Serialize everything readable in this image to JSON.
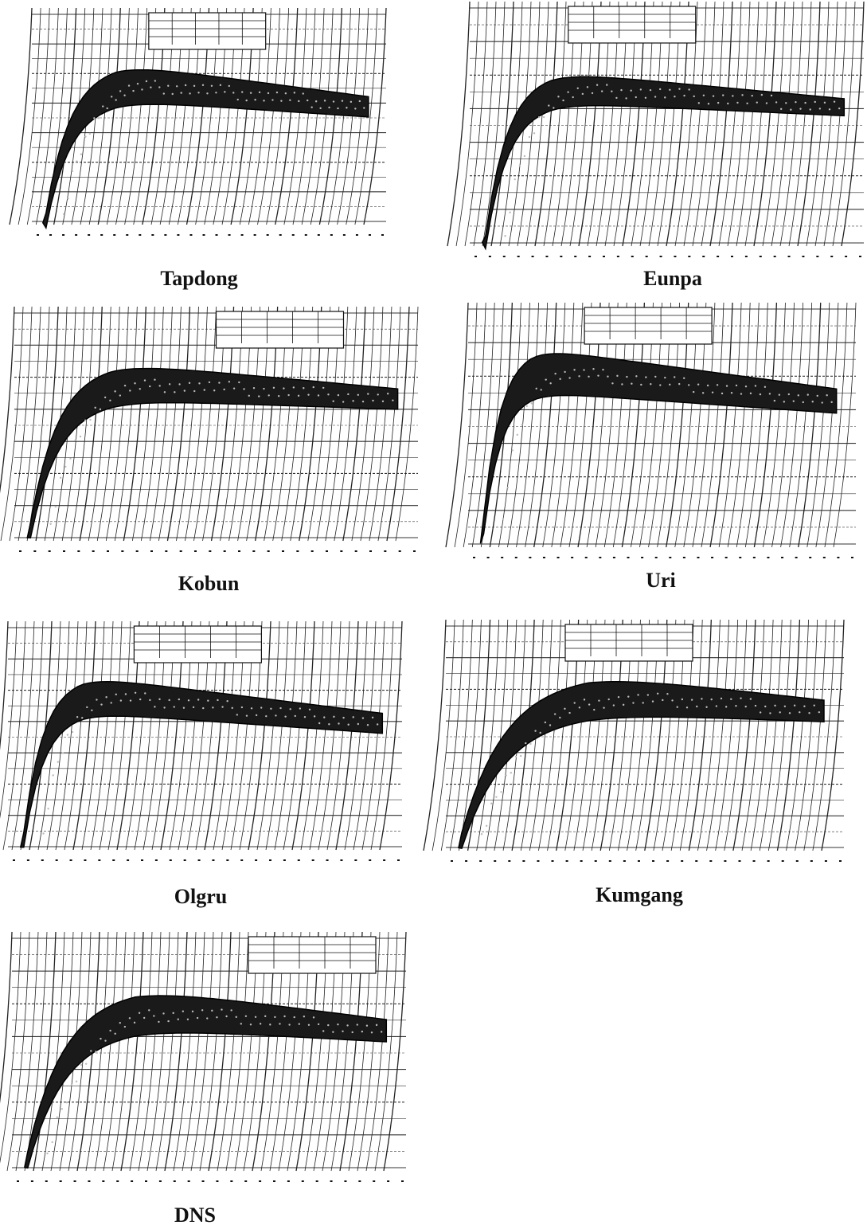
{
  "panels": [
    {
      "label": "Tapdong"
    },
    {
      "label": "Eunpa"
    },
    {
      "label": "Kobun"
    },
    {
      "label": "Uri"
    },
    {
      "label": "Olgru"
    },
    {
      "label": "Kumgang"
    },
    {
      "label": "DNS"
    }
  ]
}
